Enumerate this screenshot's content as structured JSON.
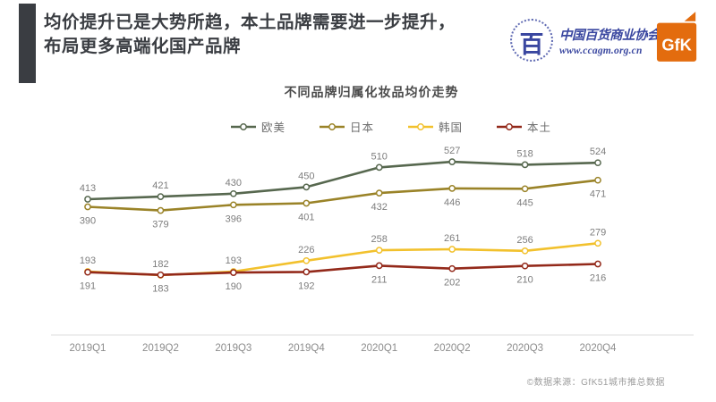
{
  "header": {
    "title_line1": "均价提升已是大势所趋，本土品牌需要进一步提升，",
    "title_line2": "布局更多高端化国产品牌",
    "accent_color": "#3a3d42"
  },
  "logos": {
    "ccagm": {
      "symbol": "百",
      "name": "中国百货商业协会",
      "url_text": "www.ccagm.org.cn",
      "color": "#3a47a0"
    },
    "gfk": {
      "label": "GfK",
      "color": "#e36c0e"
    }
  },
  "chart_data": {
    "type": "line",
    "title": "不同品牌归属化妆品均价走势",
    "categories": [
      "2019Q1",
      "2019Q2",
      "2019Q3",
      "2019Q4",
      "2020Q1",
      "2020Q2",
      "2020Q3",
      "2020Q4"
    ],
    "series": [
      {
        "name": "欧美",
        "color": "#57684f",
        "values": [
          413,
          421,
          430,
          450,
          510,
          527,
          518,
          524
        ],
        "label_position": "above"
      },
      {
        "name": "日本",
        "color": "#9a8328",
        "values": [
          390,
          379,
          396,
          401,
          432,
          446,
          445,
          471
        ],
        "label_position": "below"
      },
      {
        "name": "韩国",
        "color": "#f2c12d",
        "values": [
          193,
          182,
          193,
          226,
          258,
          261,
          256,
          279
        ],
        "label_position": "above"
      },
      {
        "name": "本土",
        "color": "#93291a",
        "values": [
          191,
          183,
          190,
          192,
          211,
          202,
          210,
          216
        ],
        "label_position": "below"
      }
    ],
    "ylim": [
      0,
      530
    ],
    "grid": false,
    "legend_position": "top",
    "value_label_color": "#7d7d7d",
    "axis_label_color": "#8c8c8c",
    "axis_line_color": "#e4e4e4"
  },
  "footer": {
    "source": "©数据来源：GfK51城市推总数据"
  }
}
